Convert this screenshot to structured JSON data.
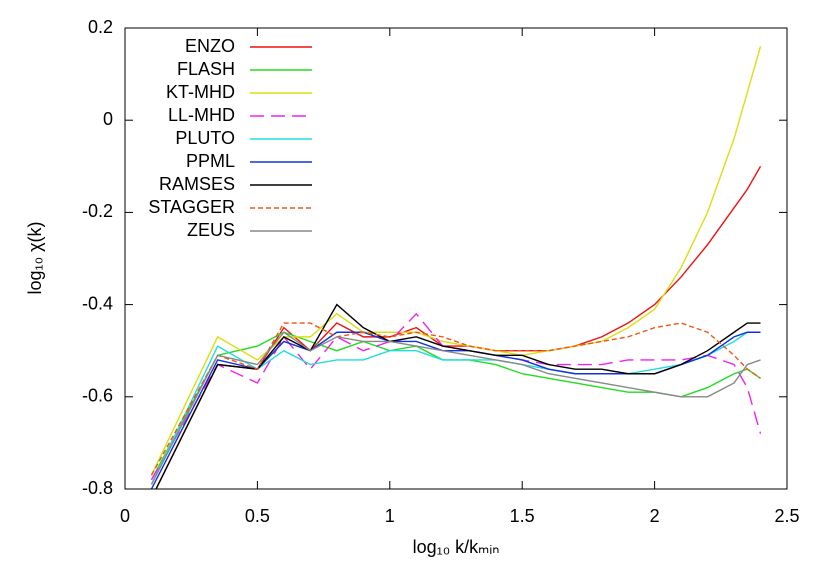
{
  "chart_data": {
    "type": "line",
    "x_label": "log₁₀ k/kₘᵢₙ",
    "y_label": "log₁₀ χ(k)",
    "x": [
      0.1,
      0.35,
      0.5,
      0.6,
      0.7,
      0.8,
      0.9,
      1.0,
      1.1,
      1.2,
      1.3,
      1.4,
      1.5,
      1.6,
      1.7,
      1.8,
      1.9,
      2.0,
      2.1,
      2.2,
      2.3,
      2.35,
      2.4
    ],
    "series": [
      {
        "name": "ENZO",
        "color": "#ee1111",
        "line_style": "solid",
        "values": [
          -0.82,
          -0.53,
          -0.54,
          -0.45,
          -0.5,
          -0.44,
          -0.47,
          -0.47,
          -0.45,
          -0.49,
          -0.49,
          -0.5,
          -0.5,
          -0.5,
          -0.49,
          -0.47,
          -0.44,
          -0.4,
          -0.34,
          -0.27,
          -0.19,
          -0.15,
          -0.1
        ]
      },
      {
        "name": "FLASH",
        "color": "#22dd22",
        "line_style": "solid",
        "values": [
          -0.78,
          -0.51,
          -0.49,
          -0.46,
          -0.48,
          -0.5,
          -0.48,
          -0.5,
          -0.49,
          -0.52,
          -0.52,
          -0.53,
          -0.55,
          -0.56,
          -0.57,
          -0.58,
          -0.59,
          -0.59,
          -0.6,
          -0.58,
          -0.55,
          -0.54,
          -0.56
        ]
      },
      {
        "name": "KT-MHD",
        "color": "#dddd11",
        "line_style": "solid",
        "values": [
          -0.77,
          -0.47,
          -0.52,
          -0.47,
          -0.47,
          -0.42,
          -0.46,
          -0.46,
          -0.46,
          -0.48,
          -0.49,
          -0.5,
          -0.51,
          -0.5,
          -0.49,
          -0.48,
          -0.45,
          -0.41,
          -0.32,
          -0.2,
          -0.04,
          0.06,
          0.16
        ]
      },
      {
        "name": "LL-MHD",
        "color": "#ee22ee",
        "line_style": "long-dash",
        "values": [
          -0.78,
          -0.53,
          -0.57,
          -0.47,
          -0.54,
          -0.47,
          -0.5,
          -0.48,
          -0.42,
          -0.49,
          -0.5,
          -0.51,
          -0.52,
          -0.53,
          -0.53,
          -0.53,
          -0.52,
          -0.52,
          -0.52,
          -0.51,
          -0.53,
          -0.58,
          -0.68
        ]
      },
      {
        "name": "PLUTO",
        "color": "#22dddd",
        "line_style": "solid",
        "values": [
          -0.79,
          -0.49,
          -0.54,
          -0.5,
          -0.53,
          -0.52,
          -0.52,
          -0.5,
          -0.5,
          -0.52,
          -0.52,
          -0.52,
          -0.53,
          -0.54,
          -0.55,
          -0.55,
          -0.55,
          -0.54,
          -0.53,
          -0.51,
          -0.48,
          -0.46,
          -0.46
        ]
      },
      {
        "name": "PPML",
        "color": "#1133dd",
        "line_style": "solid",
        "values": [
          -0.8,
          -0.52,
          -0.54,
          -0.48,
          -0.5,
          -0.46,
          -0.46,
          -0.48,
          -0.48,
          -0.5,
          -0.5,
          -0.51,
          -0.52,
          -0.54,
          -0.55,
          -0.55,
          -0.55,
          -0.55,
          -0.53,
          -0.51,
          -0.47,
          -0.46,
          -0.46
        ]
      },
      {
        "name": "RAMSES",
        "color": "#000000",
        "line_style": "solid",
        "values": [
          -0.82,
          -0.53,
          -0.54,
          -0.47,
          -0.5,
          -0.4,
          -0.45,
          -0.48,
          -0.47,
          -0.49,
          -0.5,
          -0.51,
          -0.51,
          -0.53,
          -0.54,
          -0.54,
          -0.55,
          -0.55,
          -0.53,
          -0.5,
          -0.46,
          -0.44,
          -0.44
        ]
      },
      {
        "name": "STAGGER",
        "color": "#ee5511",
        "line_style": "short-dash",
        "values": [
          -0.77,
          -0.51,
          -0.54,
          -0.44,
          -0.44,
          -0.47,
          -0.46,
          -0.47,
          -0.46,
          -0.47,
          -0.49,
          -0.5,
          -0.5,
          -0.5,
          -0.49,
          -0.48,
          -0.47,
          -0.45,
          -0.44,
          -0.46,
          -0.51,
          -0.54,
          -0.56
        ]
      },
      {
        "name": "ZEUS",
        "color": "#888888",
        "line_style": "solid",
        "values": [
          -0.79,
          -0.51,
          -0.53,
          -0.46,
          -0.5,
          -0.47,
          -0.48,
          -0.48,
          -0.49,
          -0.5,
          -0.51,
          -0.52,
          -0.53,
          -0.55,
          -0.56,
          -0.57,
          -0.58,
          -0.59,
          -0.6,
          -0.6,
          -0.57,
          -0.53,
          -0.52
        ]
      }
    ],
    "xlim": [
      0,
      2.5
    ],
    "xticks": [
      0,
      0.5,
      1,
      1.5,
      2,
      2.5
    ],
    "ylim": [
      -0.8,
      0.2
    ],
    "yticks": [
      -0.8,
      -0.6,
      -0.4,
      -0.2,
      0,
      0.2
    ],
    "legend": "top-left",
    "grid": false
  }
}
